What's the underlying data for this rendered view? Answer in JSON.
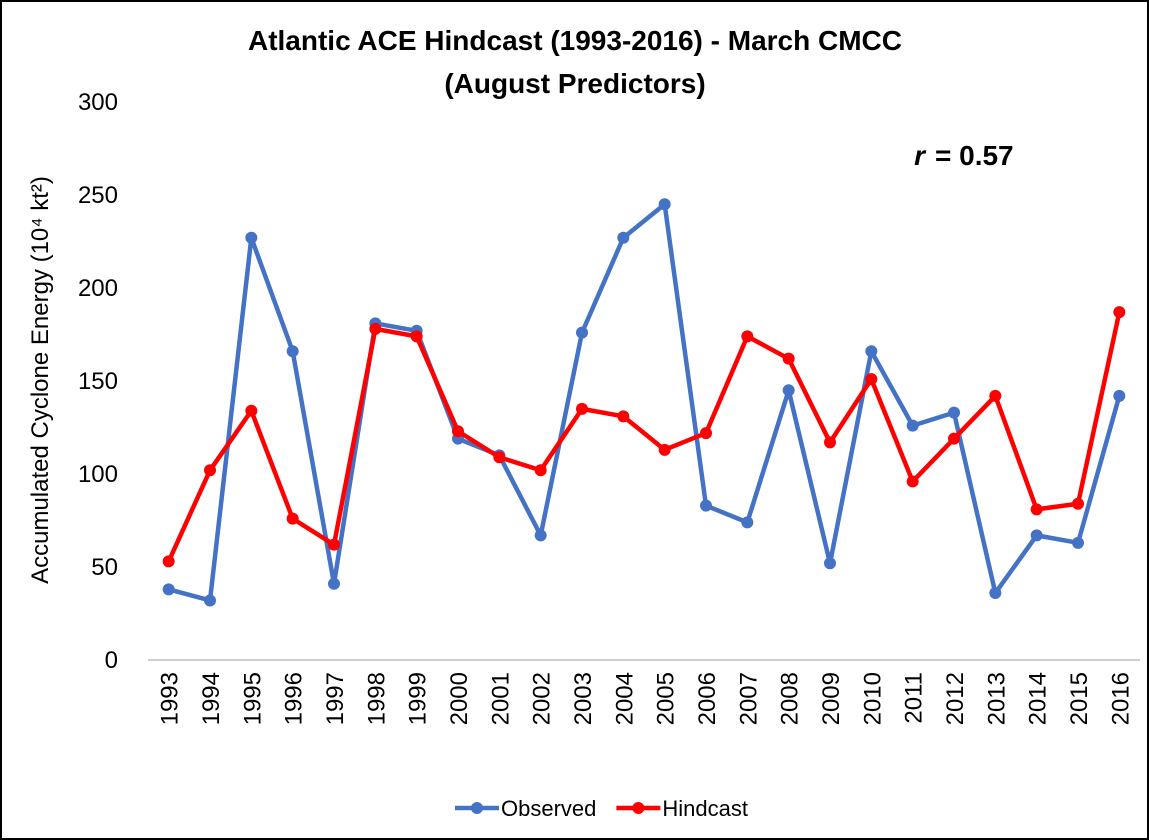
{
  "chart_data": {
    "type": "line",
    "title": "Atlantic ACE Hindcast (1993-2016) - March CMCC",
    "subtitle": "(August Predictors)",
    "y_label": "Accumulated Cyclone Energy (10⁴ kt²)",
    "annotation_symbol": "r",
    "annotation_text": "= 0.57",
    "categories": [
      "1993",
      "1994",
      "1995",
      "1996",
      "1997",
      "1998",
      "1999",
      "2000",
      "2001",
      "2002",
      "2003",
      "2004",
      "2005",
      "2006",
      "2007",
      "2008",
      "2009",
      "2010",
      "2011",
      "2012",
      "2013",
      "2014",
      "2015",
      "2016"
    ],
    "series": [
      {
        "name": "Observed",
        "color": "#4472c4",
        "values": [
          38,
          32,
          227,
          166,
          41,
          181,
          177,
          119,
          110,
          67,
          176,
          227,
          245,
          83,
          74,
          145,
          52,
          166,
          126,
          133,
          36,
          67,
          63,
          142
        ]
      },
      {
        "name": "Hindcast",
        "color": "#ff0000",
        "values": [
          53,
          102,
          134,
          76,
          62,
          178,
          174,
          123,
          109,
          102,
          135,
          131,
          113,
          122,
          174,
          162,
          117,
          151,
          96,
          119,
          142,
          81,
          84,
          187
        ]
      }
    ],
    "ylim": [
      0,
      300
    ],
    "yticks": [
      0,
      50,
      100,
      150,
      200,
      250,
      300
    ],
    "grid": false,
    "legend": "bottom"
  }
}
